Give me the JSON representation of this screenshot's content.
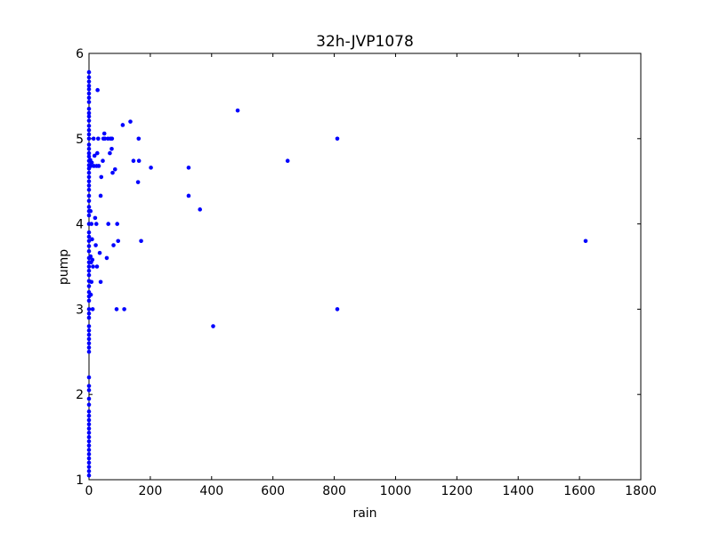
{
  "chart_data": {
    "type": "scatter",
    "title": "32h-JVP1078",
    "xlabel": "rain",
    "ylabel": "pump",
    "xlim": [
      0,
      1800
    ],
    "ylim": [
      1,
      6
    ],
    "x_ticks": [
      0,
      200,
      400,
      600,
      800,
      1000,
      1200,
      1400,
      1600,
      1800
    ],
    "y_ticks": [
      1,
      2,
      3,
      4,
      5,
      6
    ],
    "grid": false,
    "point_color": "#0000ff",
    "points": [
      [
        0,
        5.78
      ],
      [
        0,
        5.72
      ],
      [
        0,
        5.67
      ],
      [
        0,
        5.62
      ],
      [
        0,
        5.58
      ],
      [
        0,
        5.53
      ],
      [
        0,
        5.48
      ],
      [
        0,
        5.43
      ],
      [
        0,
        5.35
      ],
      [
        0,
        5.3
      ],
      [
        0,
        5.26
      ],
      [
        0,
        5.21
      ],
      [
        0,
        5.15
      ],
      [
        0,
        5.1
      ],
      [
        0,
        5.05
      ],
      [
        0,
        5.0
      ],
      [
        0,
        4.93
      ],
      [
        0,
        4.88
      ],
      [
        0,
        4.83
      ],
      [
        0,
        4.79
      ],
      [
        0,
        4.74
      ],
      [
        0,
        4.69
      ],
      [
        0,
        4.65
      ],
      [
        0,
        4.6
      ],
      [
        0,
        4.55
      ],
      [
        0,
        4.5
      ],
      [
        0,
        4.45
      ],
      [
        0,
        4.4
      ],
      [
        0,
        4.33
      ],
      [
        0,
        4.27
      ],
      [
        0,
        4.2
      ],
      [
        0,
        4.15
      ],
      [
        0,
        4.1
      ],
      [
        0,
        4.0
      ],
      [
        0,
        3.9
      ],
      [
        0,
        3.85
      ],
      [
        0,
        3.8
      ],
      [
        0,
        3.74
      ],
      [
        0,
        3.68
      ],
      [
        0,
        3.6
      ],
      [
        0,
        3.55
      ],
      [
        0,
        3.5
      ],
      [
        0,
        3.45
      ],
      [
        0,
        3.4
      ],
      [
        0,
        3.33
      ],
      [
        0,
        3.27
      ],
      [
        0,
        3.2
      ],
      [
        0,
        3.15
      ],
      [
        0,
        3.1
      ],
      [
        0,
        3.0
      ],
      [
        0,
        2.95
      ],
      [
        0,
        2.9
      ],
      [
        0,
        2.8
      ],
      [
        0,
        2.75
      ],
      [
        0,
        2.7
      ],
      [
        0,
        2.65
      ],
      [
        0,
        2.6
      ],
      [
        0,
        2.55
      ],
      [
        0,
        2.5
      ],
      [
        0,
        2.2
      ],
      [
        0,
        2.1
      ],
      [
        0,
        2.05
      ],
      [
        0,
        1.95
      ],
      [
        0,
        1.88
      ],
      [
        0,
        1.8
      ],
      [
        0,
        1.75
      ],
      [
        0,
        1.7
      ],
      [
        0,
        1.65
      ],
      [
        0,
        1.6
      ],
      [
        0,
        1.55
      ],
      [
        0,
        1.5
      ],
      [
        0,
        1.45
      ],
      [
        0,
        1.4
      ],
      [
        0,
        1.35
      ],
      [
        0,
        1.3
      ],
      [
        0,
        1.25
      ],
      [
        0,
        1.2
      ],
      [
        0,
        1.15
      ],
      [
        0,
        1.1
      ],
      [
        0,
        1.05
      ],
      [
        4,
        4.75
      ],
      [
        5,
        4.15
      ],
      [
        5,
        3.62
      ],
      [
        6,
        4.68
      ],
      [
        6,
        3.17
      ],
      [
        7,
        3.55
      ],
      [
        8,
        4.0
      ],
      [
        8,
        3.32
      ],
      [
        9,
        4.72
      ],
      [
        10,
        3.82
      ],
      [
        11,
        3.58
      ],
      [
        12,
        3.0
      ],
      [
        13,
        3.5
      ],
      [
        15,
        5.0
      ],
      [
        16,
        4.68
      ],
      [
        18,
        4.8
      ],
      [
        20,
        4.07
      ],
      [
        22,
        3.75
      ],
      [
        24,
        4.0
      ],
      [
        25,
        4.68
      ],
      [
        26,
        3.5
      ],
      [
        27,
        4.83
      ],
      [
        28,
        5.57
      ],
      [
        30,
        5.0
      ],
      [
        32,
        4.68
      ],
      [
        35,
        3.66
      ],
      [
        38,
        3.32
      ],
      [
        38,
        4.33
      ],
      [
        40,
        4.55
      ],
      [
        45,
        4.74
      ],
      [
        47,
        5.0
      ],
      [
        50,
        5.06
      ],
      [
        52,
        5.0
      ],
      [
        58,
        3.6
      ],
      [
        62,
        5.0
      ],
      [
        63,
        4.0
      ],
      [
        68,
        4.83
      ],
      [
        70,
        5.0
      ],
      [
        74,
        4.88
      ],
      [
        75,
        5.0
      ],
      [
        77,
        4.6
      ],
      [
        80,
        3.75
      ],
      [
        85,
        4.64
      ],
      [
        90,
        3.0
      ],
      [
        92,
        4.0
      ],
      [
        95,
        3.8
      ],
      [
        110,
        5.16
      ],
      [
        115,
        3.0
      ],
      [
        135,
        5.2
      ],
      [
        145,
        4.74
      ],
      [
        160,
        4.49
      ],
      [
        162,
        5.0
      ],
      [
        163,
        4.74
      ],
      [
        170,
        3.8
      ],
      [
        202,
        4.66
      ],
      [
        325,
        4.66
      ],
      [
        325,
        4.33
      ],
      [
        362,
        4.17
      ],
      [
        405,
        2.8
      ],
      [
        485,
        5.33
      ],
      [
        648,
        4.74
      ],
      [
        810,
        5.0
      ],
      [
        810,
        3.0
      ],
      [
        1620,
        3.8
      ]
    ]
  }
}
